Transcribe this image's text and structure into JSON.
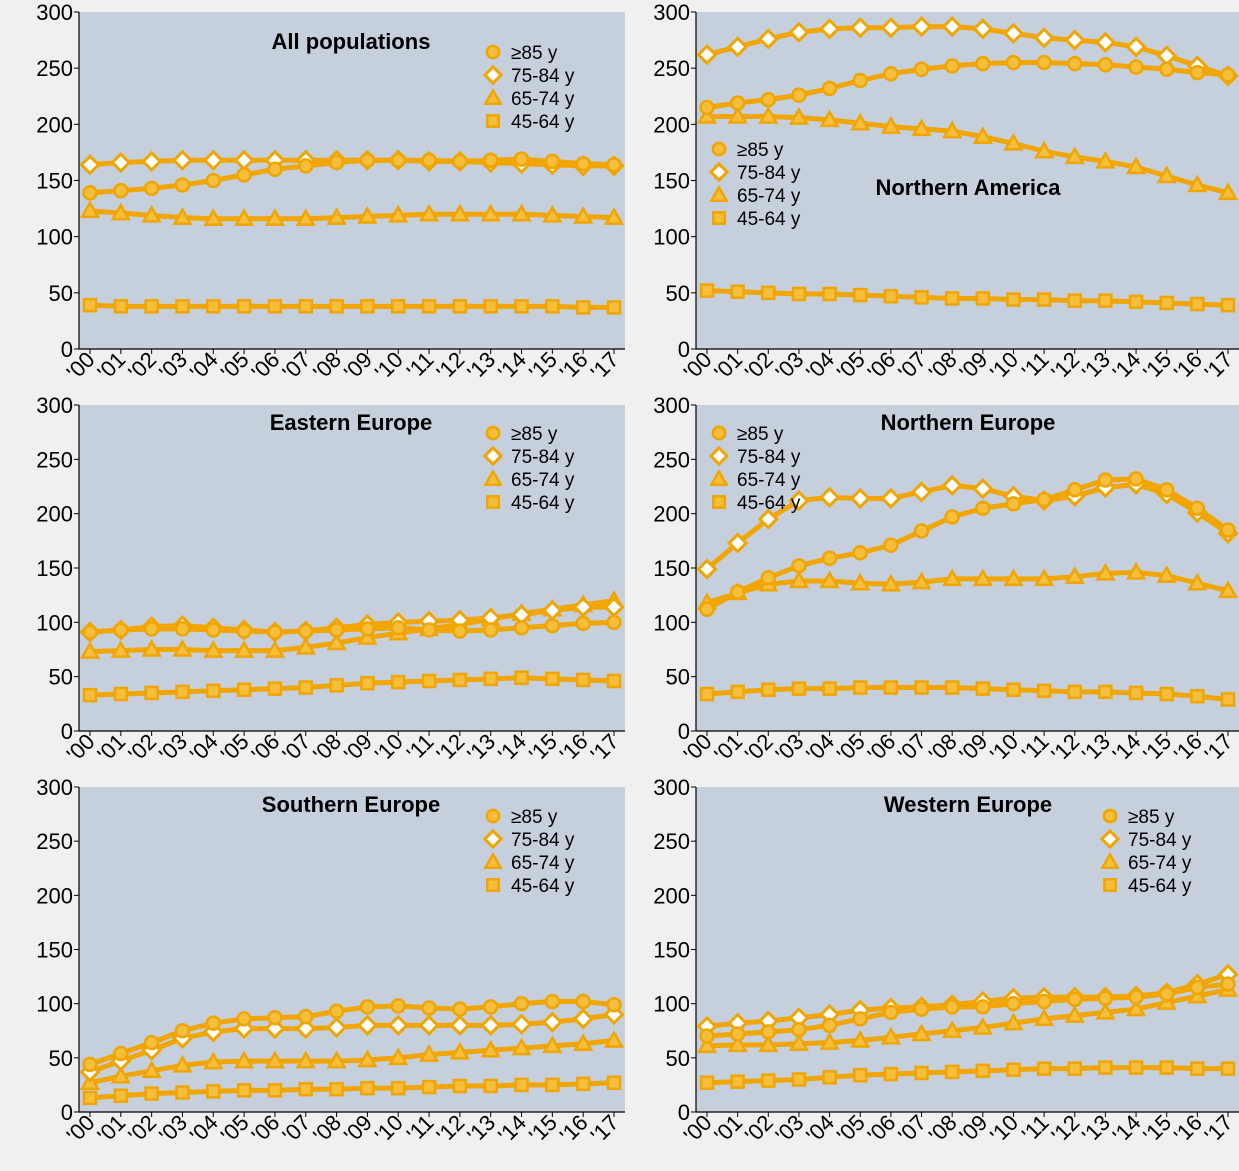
{
  "chart_data": [
    {
      "type": "line",
      "title": "All populations",
      "x": [
        "'00",
        "'01",
        "'02",
        "'03",
        "'04",
        "'05",
        "'06",
        "'07",
        "'08",
        "'09",
        "'10",
        "'11",
        "'12",
        "'13",
        "'14",
        "'15",
        "'16",
        "'17"
      ],
      "ylim": [
        0,
        300
      ],
      "yticks": [
        0,
        50,
        100,
        150,
        200,
        250,
        300
      ],
      "legend_position": "top-right",
      "series": [
        {
          "name": "≥85 y",
          "marker": "circle",
          "values": [
            139,
            141,
            143,
            146,
            150,
            155,
            160,
            163,
            166,
            168,
            168,
            168,
            167,
            168,
            169,
            167,
            165,
            164
          ]
        },
        {
          "name": "75-84 y",
          "marker": "diamond",
          "values": [
            164,
            166,
            167,
            168,
            168,
            168,
            168,
            168,
            168,
            168,
            168,
            167,
            167,
            166,
            165,
            164,
            163,
            163
          ]
        },
        {
          "name": "65-74 y",
          "marker": "triangle",
          "values": [
            123,
            121,
            119,
            117,
            116,
            116,
            116,
            116,
            117,
            118,
            119,
            120,
            120,
            120,
            120,
            119,
            118,
            117
          ]
        },
        {
          "name": "45-64 y",
          "marker": "square",
          "values": [
            39,
            38,
            38,
            38,
            38,
            38,
            38,
            38,
            38,
            38,
            38,
            38,
            38,
            38,
            38,
            38,
            37,
            37
          ]
        }
      ]
    },
    {
      "type": "line",
      "title": "Northern America",
      "x": [
        "'00",
        "'01",
        "'02",
        "'03",
        "'04",
        "'05",
        "'06",
        "'07",
        "'08",
        "'09",
        "'10",
        "'11",
        "'12",
        "'13",
        "'14",
        "'15",
        "'16",
        "'17"
      ],
      "ylim": [
        0,
        300
      ],
      "yticks": [
        0,
        50,
        100,
        150,
        200,
        250,
        300
      ],
      "legend_position": "center-left",
      "series": [
        {
          "name": "≥85 y",
          "marker": "circle",
          "values": [
            215,
            219,
            222,
            226,
            232,
            239,
            245,
            249,
            252,
            254,
            255,
            255,
            254,
            253,
            251,
            249,
            246,
            244
          ]
        },
        {
          "name": "75-84 y",
          "marker": "diamond",
          "values": [
            262,
            269,
            276,
            282,
            285,
            286,
            286,
            287,
            287,
            285,
            281,
            277,
            275,
            273,
            269,
            261,
            252,
            243
          ]
        },
        {
          "name": "65-74 y",
          "marker": "triangle",
          "values": [
            207,
            207,
            207,
            206,
            204,
            201,
            198,
            196,
            194,
            189,
            183,
            176,
            171,
            167,
            162,
            154,
            146,
            139
          ]
        },
        {
          "name": "45-64 y",
          "marker": "square",
          "values": [
            52,
            51,
            50,
            49,
            49,
            48,
            47,
            46,
            45,
            45,
            44,
            44,
            43,
            43,
            42,
            41,
            40,
            39
          ]
        }
      ]
    },
    {
      "type": "line",
      "title": "Eastern Europe",
      "x": [
        "'00",
        "'01",
        "'02",
        "'03",
        "'04",
        "'05",
        "'06",
        "'07",
        "'08",
        "'09",
        "'10",
        "'11",
        "'12",
        "'13",
        "'14",
        "'15",
        "'16",
        "'17"
      ],
      "ylim": [
        0,
        300
      ],
      "yticks": [
        0,
        50,
        100,
        150,
        200,
        250,
        300
      ],
      "legend_position": "top-right",
      "series": [
        {
          "name": "≥85 y",
          "marker": "circle",
          "values": [
            91,
            93,
            94,
            94,
            93,
            92,
            91,
            92,
            93,
            94,
            95,
            93,
            92,
            93,
            95,
            97,
            99,
            100
          ]
        },
        {
          "name": "75-84 y",
          "marker": "diamond",
          "values": [
            91,
            93,
            96,
            97,
            95,
            93,
            91,
            92,
            95,
            98,
            100,
            101,
            102,
            104,
            107,
            111,
            114,
            114
          ]
        },
        {
          "name": "65-74 y",
          "marker": "triangle",
          "values": [
            73,
            74,
            75,
            75,
            74,
            74,
            74,
            77,
            81,
            86,
            90,
            94,
            98,
            103,
            108,
            112,
            116,
            120
          ]
        },
        {
          "name": "45-64 y",
          "marker": "square",
          "values": [
            33,
            34,
            35,
            36,
            37,
            38,
            39,
            40,
            42,
            44,
            45,
            46,
            47,
            48,
            49,
            48,
            47,
            46
          ]
        }
      ]
    },
    {
      "type": "line",
      "title": "Northern Europe",
      "x": [
        "'00",
        "'01",
        "'02",
        "'03",
        "'04",
        "'05",
        "'06",
        "'07",
        "'08",
        "'09",
        "'10",
        "'11",
        "'12",
        "'13",
        "'14",
        "'15",
        "'16",
        "'17"
      ],
      "ylim": [
        0,
        300
      ],
      "yticks": [
        0,
        50,
        100,
        150,
        200,
        250,
        300
      ],
      "legend_position": "top-left",
      "series": [
        {
          "name": "≥85 y",
          "marker": "circle",
          "values": [
            112,
            128,
            141,
            152,
            159,
            164,
            171,
            184,
            197,
            205,
            209,
            213,
            222,
            231,
            232,
            222,
            205,
            185
          ]
        },
        {
          "name": "75-84 y",
          "marker": "diamond",
          "values": [
            149,
            173,
            195,
            212,
            215,
            214,
            214,
            220,
            226,
            223,
            216,
            212,
            216,
            224,
            227,
            218,
            201,
            182
          ]
        },
        {
          "name": "65-74 y",
          "marker": "triangle",
          "values": [
            118,
            127,
            135,
            138,
            138,
            136,
            135,
            137,
            140,
            140,
            140,
            140,
            142,
            145,
            146,
            143,
            136,
            129
          ]
        },
        {
          "name": "45-64 y",
          "marker": "square",
          "values": [
            34,
            36,
            38,
            39,
            39,
            40,
            40,
            40,
            40,
            39,
            38,
            37,
            36,
            36,
            35,
            34,
            32,
            29
          ]
        }
      ]
    },
    {
      "type": "line",
      "title": "Southern Europe",
      "x": [
        "'00",
        "'01",
        "'02",
        "'03",
        "'04",
        "'05",
        "'06",
        "'07",
        "'08",
        "'09",
        "'10",
        "'11",
        "'12",
        "'13",
        "'14",
        "'15",
        "'16",
        "'17"
      ],
      "ylim": [
        0,
        300
      ],
      "yticks": [
        0,
        50,
        100,
        150,
        200,
        250,
        300
      ],
      "legend_position": "top-right",
      "series": [
        {
          "name": "≥85 y",
          "marker": "circle",
          "values": [
            44,
            54,
            64,
            75,
            82,
            86,
            87,
            88,
            93,
            97,
            98,
            96,
            95,
            97,
            100,
            102,
            102,
            99
          ]
        },
        {
          "name": "75-84 y",
          "marker": "diamond",
          "values": [
            37,
            47,
            57,
            68,
            74,
            77,
            77,
            77,
            78,
            80,
            80,
            80,
            80,
            80,
            81,
            83,
            86,
            90
          ]
        },
        {
          "name": "65-74 y",
          "marker": "triangle",
          "values": [
            27,
            33,
            38,
            43,
            46,
            47,
            47,
            47,
            47,
            48,
            50,
            53,
            55,
            57,
            59,
            61,
            63,
            66
          ]
        },
        {
          "name": "45-64 y",
          "marker": "square",
          "values": [
            13,
            15,
            17,
            18,
            19,
            20,
            20,
            21,
            21,
            22,
            22,
            23,
            24,
            24,
            25,
            25,
            26,
            27
          ]
        }
      ]
    },
    {
      "type": "line",
      "title": "Western Europe",
      "x": [
        "'00",
        "'01",
        "'02",
        "'03",
        "'04",
        "'05",
        "'06",
        "'07",
        "'08",
        "'09",
        "'10",
        "'11",
        "'12",
        "'13",
        "'14",
        "'15",
        "'16",
        "'17"
      ],
      "ylim": [
        0,
        300
      ],
      "yticks": [
        0,
        50,
        100,
        150,
        200,
        250,
        300
      ],
      "legend_position": "top-right",
      "series": [
        {
          "name": "≥85 y",
          "marker": "circle",
          "values": [
            70,
            72,
            74,
            76,
            80,
            86,
            92,
            95,
            97,
            97,
            100,
            102,
            104,
            105,
            106,
            109,
            115,
            118
          ]
        },
        {
          "name": "75-84 y",
          "marker": "diamond",
          "values": [
            79,
            82,
            84,
            87,
            90,
            94,
            96,
            97,
            99,
            102,
            105,
            106,
            106,
            106,
            107,
            110,
            118,
            127
          ]
        },
        {
          "name": "65-74 y",
          "marker": "triangle",
          "values": [
            61,
            62,
            62,
            63,
            64,
            66,
            69,
            72,
            75,
            78,
            82,
            86,
            89,
            92,
            95,
            101,
            107,
            113
          ]
        },
        {
          "name": "45-64 y",
          "marker": "square",
          "values": [
            27,
            28,
            29,
            30,
            32,
            34,
            35,
            36,
            37,
            38,
            39,
            40,
            40,
            41,
            41,
            41,
            40,
            40
          ]
        }
      ]
    }
  ],
  "style": {
    "plot_background": "#c5d0dc",
    "page_background": "#f0f0f0",
    "line_color": "#f0a500",
    "marker_fill": "#f5be3c",
    "diamond_fill": "#ffffff"
  }
}
